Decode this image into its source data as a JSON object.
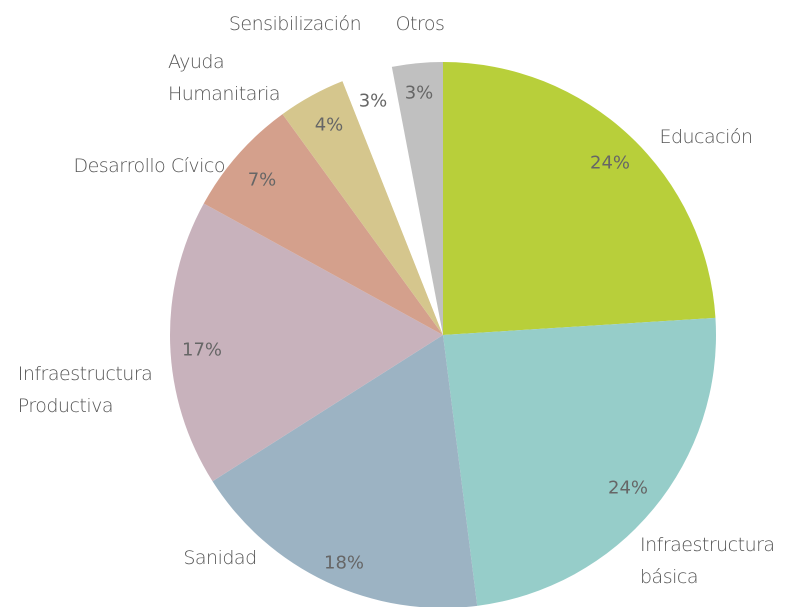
{
  "chart_data": {
    "type": "pie",
    "categories": [
      "Educación",
      "Infraestructura básica",
      "Sanidad",
      "Infraestructura Productiva",
      "Desarrollo Cívico",
      "Ayuda Humanitaria",
      "Sensibilización",
      "Otros"
    ],
    "values": [
      24,
      24,
      18,
      17,
      7,
      4,
      3,
      3
    ],
    "value_labels": [
      "24%",
      "24%",
      "18%",
      "17%",
      "7%",
      "4%",
      "3%",
      "3%"
    ],
    "colors": [
      "#b8cf3a",
      "#96cdc9",
      "#9cb3c3",
      "#c8b2bc",
      "#d4a08c",
      "#d5c68d",
      "#ffffff",
      "#c0c0c0"
    ]
  }
}
